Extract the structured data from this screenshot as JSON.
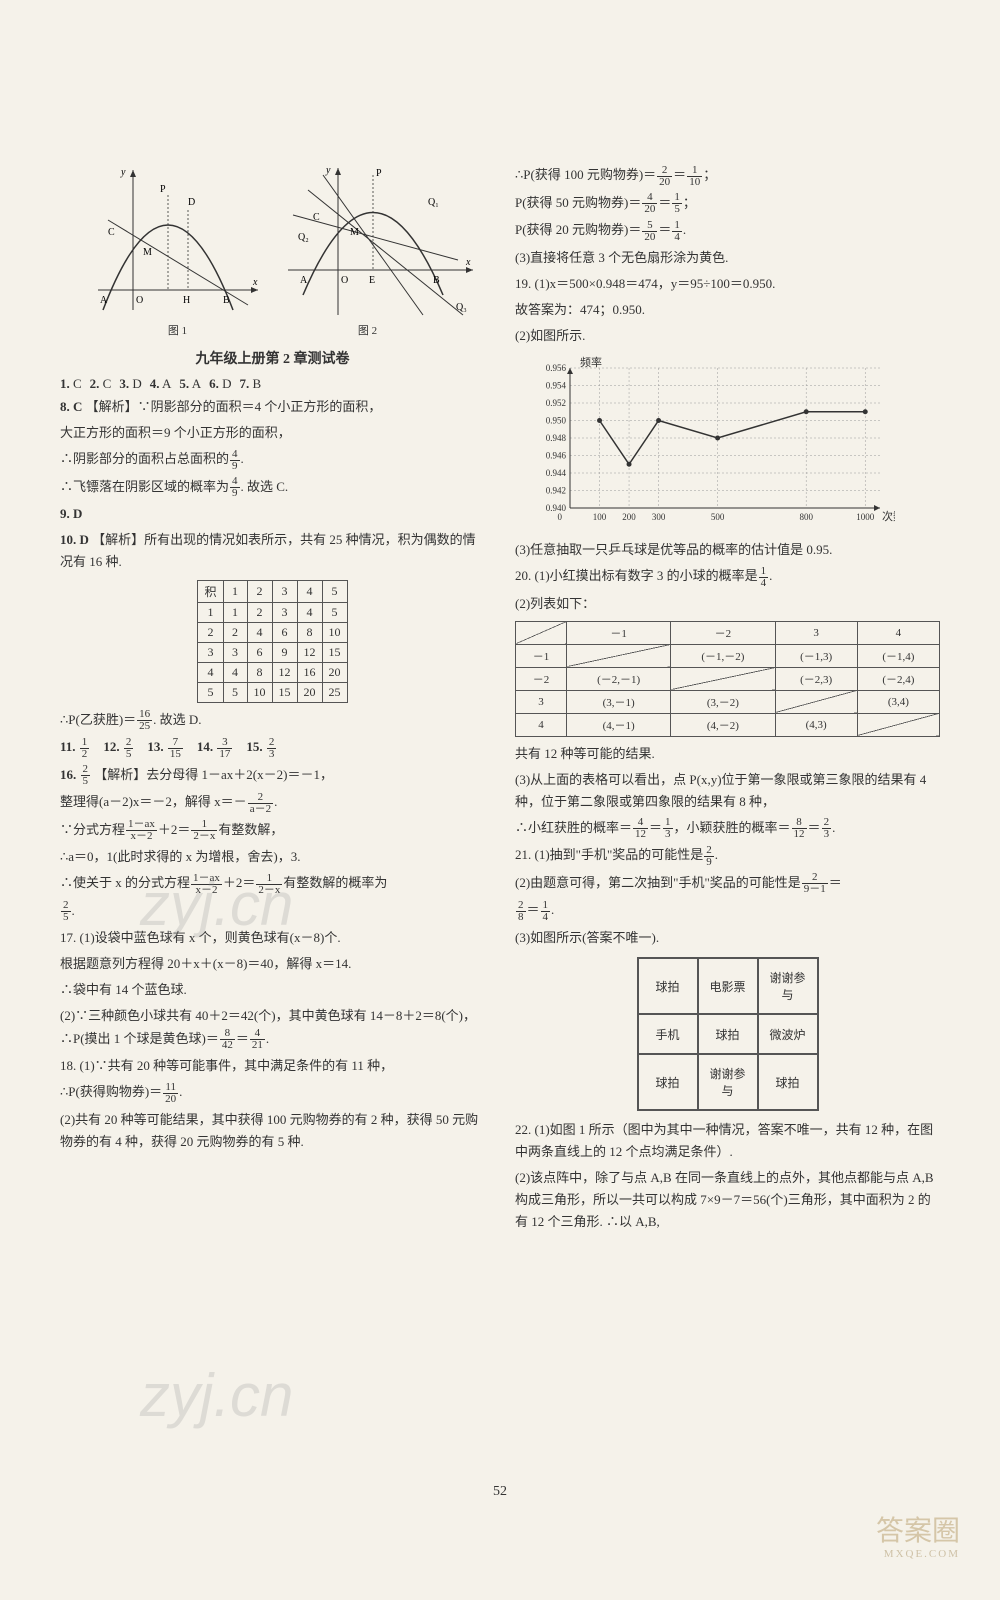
{
  "section_title": "九年级上册第 2 章测试卷",
  "page_number": "52",
  "graph1": {
    "label": "图 1",
    "axis_labels": [
      "A",
      "O",
      "H",
      "B",
      "x",
      "y",
      "C",
      "M",
      "P",
      "D"
    ]
  },
  "graph2": {
    "label": "图 2",
    "axis_labels": [
      "A",
      "O",
      "E",
      "B",
      "x",
      "y",
      "C",
      "M",
      "P",
      "Q₁",
      "Q₂",
      "Q₃"
    ]
  },
  "mc_answers": [
    {
      "n": "1",
      "a": "C"
    },
    {
      "n": "2",
      "a": "C"
    },
    {
      "n": "3",
      "a": "D"
    },
    {
      "n": "4",
      "a": "A"
    },
    {
      "n": "5",
      "a": "A"
    },
    {
      "n": "6",
      "a": "D"
    },
    {
      "n": "7",
      "a": "B"
    }
  ],
  "q8": {
    "label": "8. C",
    "analysis_label": "【解析】",
    "line1": "∵阴影部分的面积＝4 个小正方形的面积，",
    "line2": "大正方形的面积＝9 个小正方形的面积，",
    "line3_pre": "∴阴影部分的面积占总面积的",
    "line3_frac": {
      "num": "4",
      "den": "9"
    },
    "line3_post": ".",
    "line4_pre": "∴飞镖落在阴影区域的概率为",
    "line4_frac": {
      "num": "4",
      "den": "9"
    },
    "line4_post": ". 故选 C."
  },
  "q9": "9. D",
  "q10": {
    "label": "10. D",
    "analysis_label": "【解析】",
    "text1": "所有出现的情况如表所示，共有 25 种情况，积为偶数的情况有 16 种.",
    "table": {
      "header": [
        "积",
        "1",
        "2",
        "3",
        "4",
        "5"
      ],
      "rows": [
        [
          "1",
          "1",
          "2",
          "3",
          "4",
          "5"
        ],
        [
          "2",
          "2",
          "4",
          "6",
          "8",
          "10"
        ],
        [
          "3",
          "3",
          "6",
          "9",
          "12",
          "15"
        ],
        [
          "4",
          "4",
          "8",
          "12",
          "16",
          "20"
        ],
        [
          "5",
          "5",
          "10",
          "15",
          "20",
          "25"
        ]
      ]
    },
    "conclusion_pre": "∴P(乙获胜)＝",
    "conclusion_frac": {
      "num": "16",
      "den": "25"
    },
    "conclusion_post": ". 故选 D."
  },
  "fill": [
    {
      "n": "11",
      "frac": {
        "num": "1",
        "den": "2"
      }
    },
    {
      "n": "12",
      "frac": {
        "num": "2",
        "den": "5"
      }
    },
    {
      "n": "13",
      "frac": {
        "num": "7",
        "den": "15"
      }
    },
    {
      "n": "14",
      "frac": {
        "num": "3",
        "den": "17"
      }
    },
    {
      "n": "15",
      "frac": {
        "num": "2",
        "den": "3"
      }
    }
  ],
  "q16": {
    "label_pre": "16.",
    "label_frac": {
      "num": "2",
      "den": "5"
    },
    "analysis_label": "【解析】",
    "l1": "去分母得 1－ax＋2(x－2)＝－1，",
    "l2_pre": "整理得(a－2)x＝－2，解得 x＝－",
    "l2_frac": {
      "num": "2",
      "den": "a－2"
    },
    "l2_post": ".",
    "l3_pre": "∵分式方程",
    "l3_frac1": {
      "num": "1－ax",
      "den": "x－2"
    },
    "l3_mid": "＋2＝",
    "l3_frac2": {
      "num": "1",
      "den": "2－x"
    },
    "l3_post": "有整数解，",
    "l4": "∴a＝0，1(此时求得的 x 为增根，舍去)，3.",
    "l5_pre": "∴使关于 x 的分式方程",
    "l5_frac1": {
      "num": "1－ax",
      "den": "x－2"
    },
    "l5_mid": "＋2＝",
    "l5_frac2": {
      "num": "1",
      "den": "2－x"
    },
    "l5_post": "有整数解的概率为",
    "l6_frac": {
      "num": "2",
      "den": "5"
    },
    "l6_post": "."
  },
  "q17": {
    "l1": "17. (1)设袋中蓝色球有 x 个，则黄色球有(x－8)个.",
    "l2": "根据题意列方程得 20＋x＋(x－8)＝40，解得 x＝14.",
    "l3": "∴袋中有 14 个蓝色球.",
    "l4_pre": "(2)∵三种颜色小球共有 40＋2＝42(个)，其中黄色球有 14－8＋2＝8(个)，∴P(摸出 1 个球是黄色球)＝",
    "l4_frac1": {
      "num": "8",
      "den": "42"
    },
    "l4_mid": "＝",
    "l4_frac2": {
      "num": "4",
      "den": "21"
    },
    "l4_post": "."
  },
  "q18": {
    "l1": "18. (1)∵共有 20 种等可能事件，其中满足条件的有 11 种，",
    "l2_pre": "∴P(获得购物券)＝",
    "l2_frac": {
      "num": "11",
      "den": "20"
    },
    "l2_post": ".",
    "l3": "(2)共有 20 种等可能结果，其中获得 100 元购物券的有 2 种，获得 50 元购物券的有 4 种，获得 20 元购物券的有 5 种."
  },
  "q18r": {
    "l1_pre": "∴P(获得 100 元购物券)＝",
    "l1_f1": {
      "num": "2",
      "den": "20"
    },
    "l1_mid": "＝",
    "l1_f2": {
      "num": "1",
      "den": "10"
    },
    "l1_post": "；",
    "l2_pre": "P(获得 50 元购物券)＝",
    "l2_f1": {
      "num": "4",
      "den": "20"
    },
    "l2_mid": "＝",
    "l2_f2": {
      "num": "1",
      "den": "5"
    },
    "l2_post": "；",
    "l3_pre": "P(获得 20 元购物券)＝",
    "l3_f1": {
      "num": "5",
      "den": "20"
    },
    "l3_mid": "＝",
    "l3_f2": {
      "num": "1",
      "den": "4"
    },
    "l3_post": ".",
    "l4": "(3)直接将任意 3 个无色扇形涂为黄色."
  },
  "q19": {
    "l1": "19. (1)x＝500×0.948＝474，y＝95÷100＝0.950.",
    "l2": "故答案为：474；0.950.",
    "l3": "(2)如图所示.",
    "chart": {
      "ylabel": "频率",
      "xlabel": "次数",
      "yticks": [
        "0.940",
        "0.942",
        "0.944",
        "0.946",
        "0.948",
        "0.950",
        "0.952",
        "0.954",
        "0.956"
      ],
      "xticks": [
        "100",
        "200",
        "300",
        "500",
        "800",
        "1000"
      ],
      "points": [
        {
          "x": 100,
          "y": 0.95
        },
        {
          "x": 200,
          "y": 0.945
        },
        {
          "x": 300,
          "y": 0.95
        },
        {
          "x": 500,
          "y": 0.948
        },
        {
          "x": 800,
          "y": 0.951
        },
        {
          "x": 1000,
          "y": 0.951
        }
      ],
      "ylim": [
        0.94,
        0.956
      ],
      "xlim": [
        0,
        1050
      ],
      "line_color": "#333",
      "grid_color": "#999"
    },
    "l4": "(3)任意抽取一只乒乓球是优等品的概率的估计值是 0.95."
  },
  "q20": {
    "l1_pre": "20. (1)小红摸出标有数字 3 的小球的概率是",
    "l1_frac": {
      "num": "1",
      "den": "4"
    },
    "l1_post": ".",
    "l2": "(2)列表如下：",
    "table": {
      "header": [
        "",
        "－1",
        "－2",
        "3",
        "4"
      ],
      "rows": [
        [
          "－1",
          "diag",
          "(－1,－2)",
          "(－1,3)",
          "(－1,4)"
        ],
        [
          "－2",
          "(－2,－1)",
          "diag",
          "(－2,3)",
          "(－2,4)"
        ],
        [
          "3",
          "(3,－1)",
          "(3,－2)",
          "diag",
          "(3,4)"
        ],
        [
          "4",
          "(4,－1)",
          "(4,－2)",
          "(4,3)",
          "diag"
        ]
      ]
    },
    "l3": "共有 12 种等可能的结果.",
    "l4": "(3)从上面的表格可以看出，点 P(x,y)位于第一象限或第三象限的结果有 4 种，位于第二象限或第四象限的结果有 8 种，",
    "l5_pre": "∴小红获胜的概率＝",
    "l5_f1": {
      "num": "4",
      "den": "12"
    },
    "l5_m1": "＝",
    "l5_f2": {
      "num": "1",
      "den": "3"
    },
    "l5_m2": "，小颖获胜的概率＝",
    "l5_f3": {
      "num": "8",
      "den": "12"
    },
    "l5_m3": "＝",
    "l5_f4": {
      "num": "2",
      "den": "3"
    },
    "l5_post": "."
  },
  "q21": {
    "l1_pre": "21. (1)抽到\"手机\"奖品的可能性是",
    "l1_frac": {
      "num": "2",
      "den": "9"
    },
    "l1_post": ".",
    "l2_pre": "(2)由题意可得，第二次抽到\"手机\"奖品的可能性是",
    "l2_f1": {
      "num": "2",
      "den": "9－1"
    },
    "l2_mid": "＝",
    "l3_f": {
      "num": "2",
      "den": "8"
    },
    "l3_mid": "＝",
    "l3_f2": {
      "num": "1",
      "den": "4"
    },
    "l3_post": ".",
    "l4": "(3)如图所示(答案不唯一).",
    "prize_table": [
      [
        "球拍",
        "电影票",
        "谢谢参与"
      ],
      [
        "手机",
        "球拍",
        "微波炉"
      ],
      [
        "球拍",
        "谢谢参与",
        "球拍"
      ]
    ]
  },
  "q22": {
    "l1": "22. (1)如图 1 所示（图中为其中一种情况，答案不唯一，共有 12 种，在图中两条直线上的 12 个点均满足条件）.",
    "l2": "(2)该点阵中，除了与点 A,B 在同一条直线上的点外，其他点都能与点 A,B 构成三角形，所以一共可以构成 7×9－7＝56(个)三角形，其中面积为 2 的有 12 个三角形. ∴以 A,B,"
  },
  "watermarks": {
    "w1": "zyj.cn",
    "w2": "zyj.cn",
    "w3_main": "答案圈",
    "w3_sub": "MXQE.COM"
  }
}
